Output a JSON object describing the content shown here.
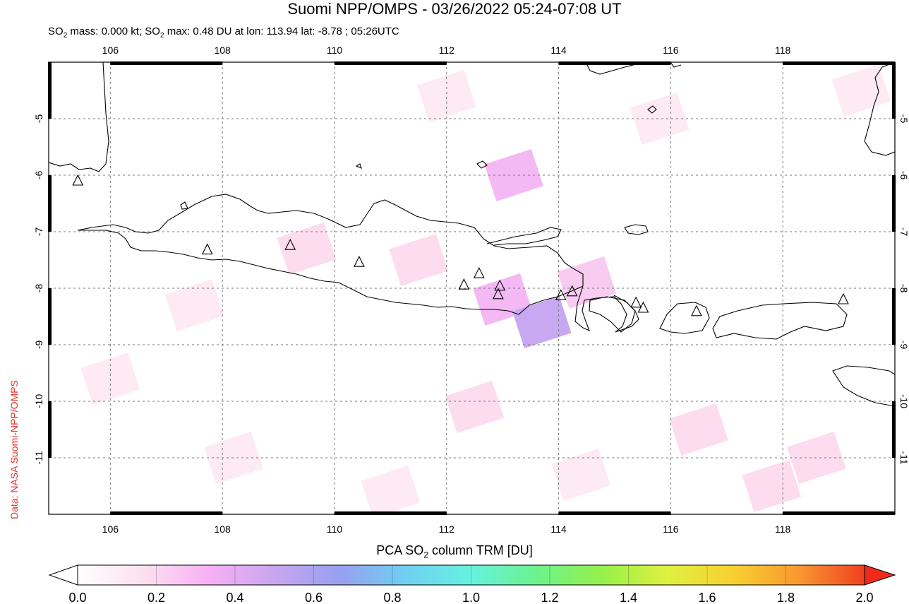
{
  "title": "Suomi NPP/OMPS - 03/26/2022 05:24-07:08 UT",
  "subtitle": {
    "part1": "SO",
    "sub1": "2",
    "part2": " mass: 0.000 kt; SO",
    "sub2": "2",
    "part3": " max: 0.48 DU at lon: 113.94 lat: -8.78 ; 05:26UTC"
  },
  "credit": "Data: NASA Suomi-NPP/OMPS",
  "colorbar": {
    "title_pre": "PCA SO",
    "title_sub": "2",
    "title_post": " column TRM [DU]",
    "ticks": [
      "0.0",
      "0.2",
      "0.4",
      "0.6",
      "0.8",
      "1.0",
      "1.2",
      "1.4",
      "1.6",
      "1.8",
      "2.0"
    ],
    "colors": [
      "#ffffff",
      "#fde0f0",
      "#f8b0f5",
      "#c8a6ef",
      "#98a0f0",
      "#6fcff2",
      "#66f2e0",
      "#6cf28c",
      "#96f04a",
      "#e0f040",
      "#f8d030",
      "#f89830",
      "#f04020"
    ]
  },
  "map": {
    "lon_ticks": [
      "106",
      "108",
      "110",
      "112",
      "114",
      "116",
      "118"
    ],
    "lat_ticks": [
      "-5",
      "-6",
      "-7",
      "-8",
      "-9",
      "-10",
      "-11"
    ],
    "lon_range": [
      104.9,
      120.0
    ],
    "lat_range": [
      -12.0,
      -4.0
    ],
    "volcano_icon": "triangle-volcano-icon",
    "volcanoes": [
      [
        105.42,
        -6.1
      ],
      [
        107.73,
        -7.32
      ],
      [
        109.21,
        -7.24
      ],
      [
        110.44,
        -7.54
      ],
      [
        112.31,
        -7.94
      ],
      [
        112.58,
        -7.74
      ],
      [
        112.92,
        -8.11
      ],
      [
        112.95,
        -7.96
      ],
      [
        114.04,
        -8.13
      ],
      [
        114.24,
        -8.06
      ],
      [
        115.38,
        -8.26
      ],
      [
        115.51,
        -8.35
      ],
      [
        116.46,
        -8.41
      ],
      [
        119.08,
        -8.2
      ]
    ],
    "so2_patches": [
      {
        "lon": 113.0,
        "lat": -8.2,
        "value": 0.35
      },
      {
        "lon": 113.7,
        "lat": -8.6,
        "value": 0.48
      },
      {
        "lon": 113.2,
        "lat": -6.0,
        "value": 0.35
      },
      {
        "lon": 114.5,
        "lat": -7.9,
        "value": 0.22
      },
      {
        "lon": 111.5,
        "lat": -7.5,
        "value": 0.15
      },
      {
        "lon": 109.5,
        "lat": -7.3,
        "value": 0.12
      },
      {
        "lon": 107.5,
        "lat": -8.3,
        "value": 0.1
      },
      {
        "lon": 117.8,
        "lat": -11.5,
        "value": 0.18
      },
      {
        "lon": 118.6,
        "lat": -11.0,
        "value": 0.14
      },
      {
        "lon": 116.5,
        "lat": -10.5,
        "value": 0.12
      },
      {
        "lon": 112.5,
        "lat": -10.1,
        "value": 0.12
      },
      {
        "lon": 111.0,
        "lat": -11.6,
        "value": 0.1
      },
      {
        "lon": 106.0,
        "lat": -9.6,
        "value": 0.06
      },
      {
        "lon": 108.2,
        "lat": -11.0,
        "value": 0.06
      },
      {
        "lon": 115.8,
        "lat": -5.0,
        "value": 0.06
      },
      {
        "lon": 119.4,
        "lat": -4.5,
        "value": 0.1
      },
      {
        "lon": 112.0,
        "lat": -4.6,
        "value": 0.08
      },
      {
        "lon": 114.4,
        "lat": -11.3,
        "value": 0.08
      }
    ]
  }
}
